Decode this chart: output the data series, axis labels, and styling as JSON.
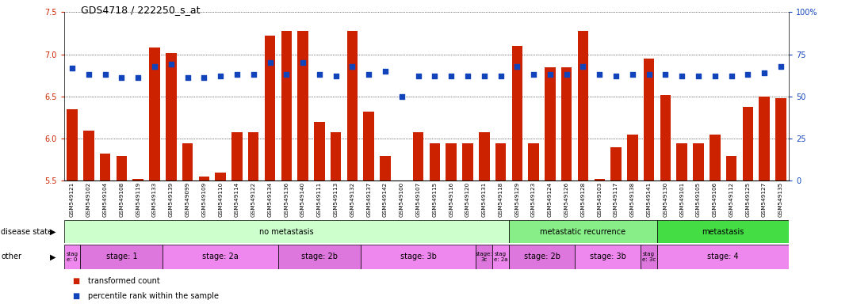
{
  "title": "GDS4718 / 222250_s_at",
  "sample_labels": [
    "GSM549121",
    "GSM549102",
    "GSM549104",
    "GSM549108",
    "GSM549119",
    "GSM549133",
    "GSM549139",
    "GSM549099",
    "GSM549109",
    "GSM549110",
    "GSM549114",
    "GSM549122",
    "GSM549134",
    "GSM549136",
    "GSM549140",
    "GSM549111",
    "GSM549113",
    "GSM549132",
    "GSM549137",
    "GSM549142",
    "GSM549100",
    "GSM549107",
    "GSM549115",
    "GSM549116",
    "GSM549120",
    "GSM549131",
    "GSM549118",
    "GSM549129",
    "GSM549123",
    "GSM549124",
    "GSM549126",
    "GSM549128",
    "GSM549103",
    "GSM549117",
    "GSM549138",
    "GSM549141",
    "GSM549130",
    "GSM549101",
    "GSM549105",
    "GSM549106",
    "GSM549112",
    "GSM549125",
    "GSM549127",
    "GSM549135"
  ],
  "bar_values": [
    6.35,
    6.1,
    5.82,
    5.8,
    5.52,
    7.08,
    7.02,
    5.95,
    5.55,
    5.6,
    6.08,
    6.08,
    7.22,
    7.28,
    7.28,
    6.2,
    6.08,
    7.28,
    6.32,
    5.8,
    5.5,
    6.08,
    5.95,
    5.95,
    5.95,
    6.08,
    5.95,
    7.1,
    5.95,
    6.85,
    6.85,
    7.28,
    5.52,
    5.9,
    6.05,
    6.95,
    6.52,
    5.95,
    5.95,
    6.05,
    5.8,
    6.38,
    6.5,
    6.48
  ],
  "blue_values": [
    67,
    63,
    63,
    61,
    61,
    68,
    69,
    61,
    61,
    62,
    63,
    63,
    70,
    63,
    70,
    63,
    62,
    68,
    63,
    65,
    50,
    62,
    62,
    62,
    62,
    62,
    62,
    68,
    63,
    63,
    63,
    68,
    63,
    62,
    63,
    63,
    63,
    62,
    62,
    62,
    62,
    63,
    64,
    68
  ],
  "ylim_left": [
    5.5,
    7.5
  ],
  "ylim_right": [
    0,
    100
  ],
  "yticks_left": [
    5.5,
    6.0,
    6.5,
    7.0,
    7.5
  ],
  "yticks_right": [
    0,
    25,
    50,
    75,
    100
  ],
  "bar_color": "#cc2200",
  "dot_color": "#1144bb",
  "disease_state_regions": [
    {
      "label": "no metastasis",
      "start": 0,
      "end": 27,
      "color": "#ccffcc"
    },
    {
      "label": "metastatic recurrence",
      "start": 27,
      "end": 36,
      "color": "#88ee88"
    },
    {
      "label": "metastasis",
      "start": 36,
      "end": 44,
      "color": "#44dd44"
    }
  ],
  "stage_regions": [
    {
      "label": "stag\ne: 0",
      "start": 0,
      "end": 1,
      "color": "#ee88ee"
    },
    {
      "label": "stage: 1",
      "start": 1,
      "end": 6,
      "color": "#dd77dd"
    },
    {
      "label": "stage: 2a",
      "start": 6,
      "end": 13,
      "color": "#ee88ee"
    },
    {
      "label": "stage: 2b",
      "start": 13,
      "end": 18,
      "color": "#dd77dd"
    },
    {
      "label": "stage: 3b",
      "start": 18,
      "end": 25,
      "color": "#ee88ee"
    },
    {
      "label": "stage:\n3c",
      "start": 25,
      "end": 26,
      "color": "#dd77dd"
    },
    {
      "label": "stag\ne: 2a",
      "start": 26,
      "end": 27,
      "color": "#ee88ee"
    },
    {
      "label": "stage: 2b",
      "start": 27,
      "end": 31,
      "color": "#dd77dd"
    },
    {
      "label": "stage: 3b",
      "start": 31,
      "end": 35,
      "color": "#ee88ee"
    },
    {
      "label": "stag\ne: 3c",
      "start": 35,
      "end": 36,
      "color": "#dd77dd"
    },
    {
      "label": "stage: 4",
      "start": 36,
      "end": 44,
      "color": "#ee88ee"
    }
  ],
  "left_label": "disease state",
  "other_label": "other",
  "legend_items": [
    {
      "label": "transformed count",
      "color": "#cc2200"
    },
    {
      "label": "percentile rank within the sample",
      "color": "#1144bb"
    }
  ]
}
